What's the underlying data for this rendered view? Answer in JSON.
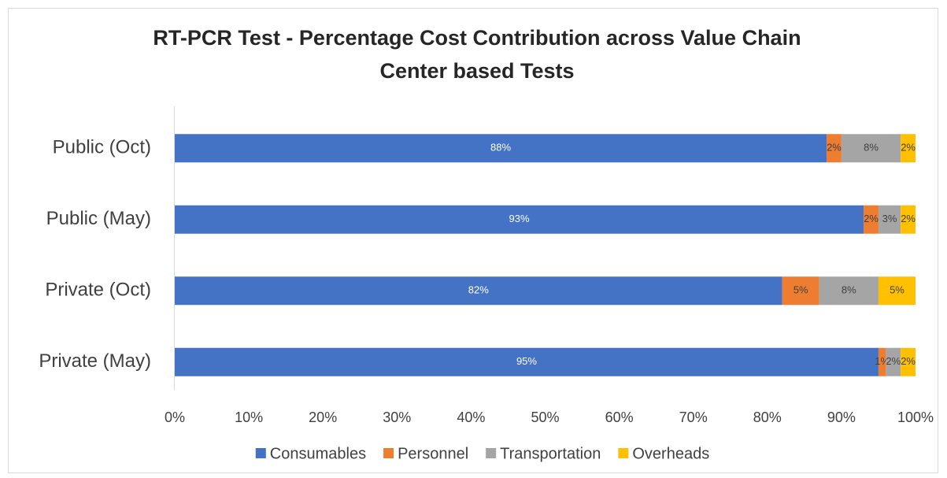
{
  "chart_data": {
    "type": "stacked-bar-horizontal",
    "title": "RT-PCR Test - Percentage Cost Contribution across Value Chain",
    "subtitle": "Center based Tests",
    "categories": [
      "Public (Oct)",
      "Public (May)",
      "Private (Oct)",
      "Private (May)"
    ],
    "series": [
      {
        "name": "Consumables",
        "color": "#4472c4",
        "label_color": "#ffffff",
        "values": [
          88,
          93,
          82,
          95
        ],
        "value_labels": [
          "88%",
          "93%",
          "82%",
          "95%"
        ]
      },
      {
        "name": "Personnel",
        "color": "#ed7d31",
        "label_color": "#404040",
        "values": [
          2,
          2,
          5,
          1
        ],
        "value_labels": [
          "2%",
          "2%",
          "5%",
          "1%"
        ]
      },
      {
        "name": "Transportation",
        "color": "#a5a5a5",
        "label_color": "#404040",
        "values": [
          8,
          3,
          8,
          2
        ],
        "value_labels": [
          "8%",
          "3%",
          "8%",
          "2%"
        ]
      },
      {
        "name": "Overheads",
        "color": "#ffc000",
        "label_color": "#404040",
        "values": [
          2,
          2,
          5,
          2
        ],
        "value_labels": [
          "2%",
          "2%",
          "5%",
          "2%"
        ]
      }
    ],
    "xlim": [
      0,
      100
    ],
    "xticks": [
      {
        "value": 0,
        "label": "0%"
      },
      {
        "value": 10,
        "label": "10%"
      },
      {
        "value": 20,
        "label": "20%"
      },
      {
        "value": 30,
        "label": "30%"
      },
      {
        "value": 40,
        "label": "40%"
      },
      {
        "value": 50,
        "label": "50%"
      },
      {
        "value": 60,
        "label": "60%"
      },
      {
        "value": 70,
        "label": "70%"
      },
      {
        "value": 80,
        "label": "80%"
      },
      {
        "value": 90,
        "label": "90%"
      },
      {
        "value": 100,
        "label": "100%"
      }
    ],
    "grid": false,
    "legend": "bottom"
  }
}
